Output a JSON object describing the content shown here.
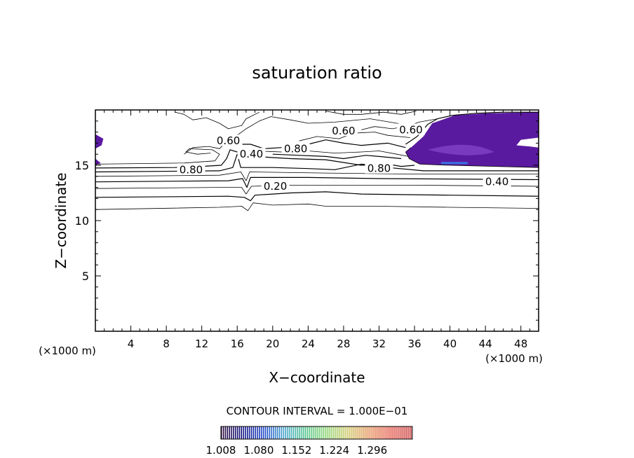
{
  "chart_data": {
    "type": "contour",
    "title": "saturation ratio",
    "xlabel": "X−coordinate",
    "ylabel": "Z−coordinate",
    "x_unit_left": "(×1000 m)",
    "x_unit_right": "(×1000 m)",
    "xlim": [
      0,
      50
    ],
    "ylim": [
      0,
      20
    ],
    "x_ticks": [
      4,
      8,
      12,
      16,
      20,
      24,
      28,
      32,
      36,
      40,
      44,
      48
    ],
    "y_ticks": [
      5,
      10,
      15
    ],
    "x_tick_labels": [
      "4",
      "8",
      "12",
      "16",
      "20",
      "24",
      "28",
      "32",
      "36",
      "40",
      "44",
      "48"
    ],
    "y_tick_labels": [
      "5",
      "10",
      "15"
    ],
    "contour_interval_text": "CONTOUR INTERVAL = 1.000E−01",
    "contour_labels": [
      {
        "text": "0.60",
        "x": 15.0,
        "z": 17.2
      },
      {
        "text": "0.40",
        "x": 17.6,
        "z": 16.0
      },
      {
        "text": "0.80",
        "x": 22.6,
        "z": 16.5
      },
      {
        "text": "0.60",
        "x": 28.0,
        "z": 18.1
      },
      {
        "text": "0.60",
        "x": 35.6,
        "z": 18.2
      },
      {
        "text": "0.80",
        "x": 32.0,
        "z": 14.7
      },
      {
        "text": "0.80",
        "x": 10.8,
        "z": 14.6
      },
      {
        "text": "0.20",
        "x": 20.3,
        "z": 13.1
      },
      {
        "text": "0.40",
        "x": 45.3,
        "z": 13.5
      }
    ],
    "colorbar": {
      "tick_labels": [
        "1.008",
        "1.080",
        "1.152",
        "1.224",
        "1.296"
      ],
      "colors": [
        "#2a0a3a",
        "#0a0a80",
        "#1840c8",
        "#3aa0c8",
        "#40c080",
        "#80d060",
        "#c8c050",
        "#e08040",
        "#e04030",
        "#c02020"
      ]
    },
    "fill_color": "#5a1aa0",
    "fill_color_light": "#7a3ac0"
  }
}
